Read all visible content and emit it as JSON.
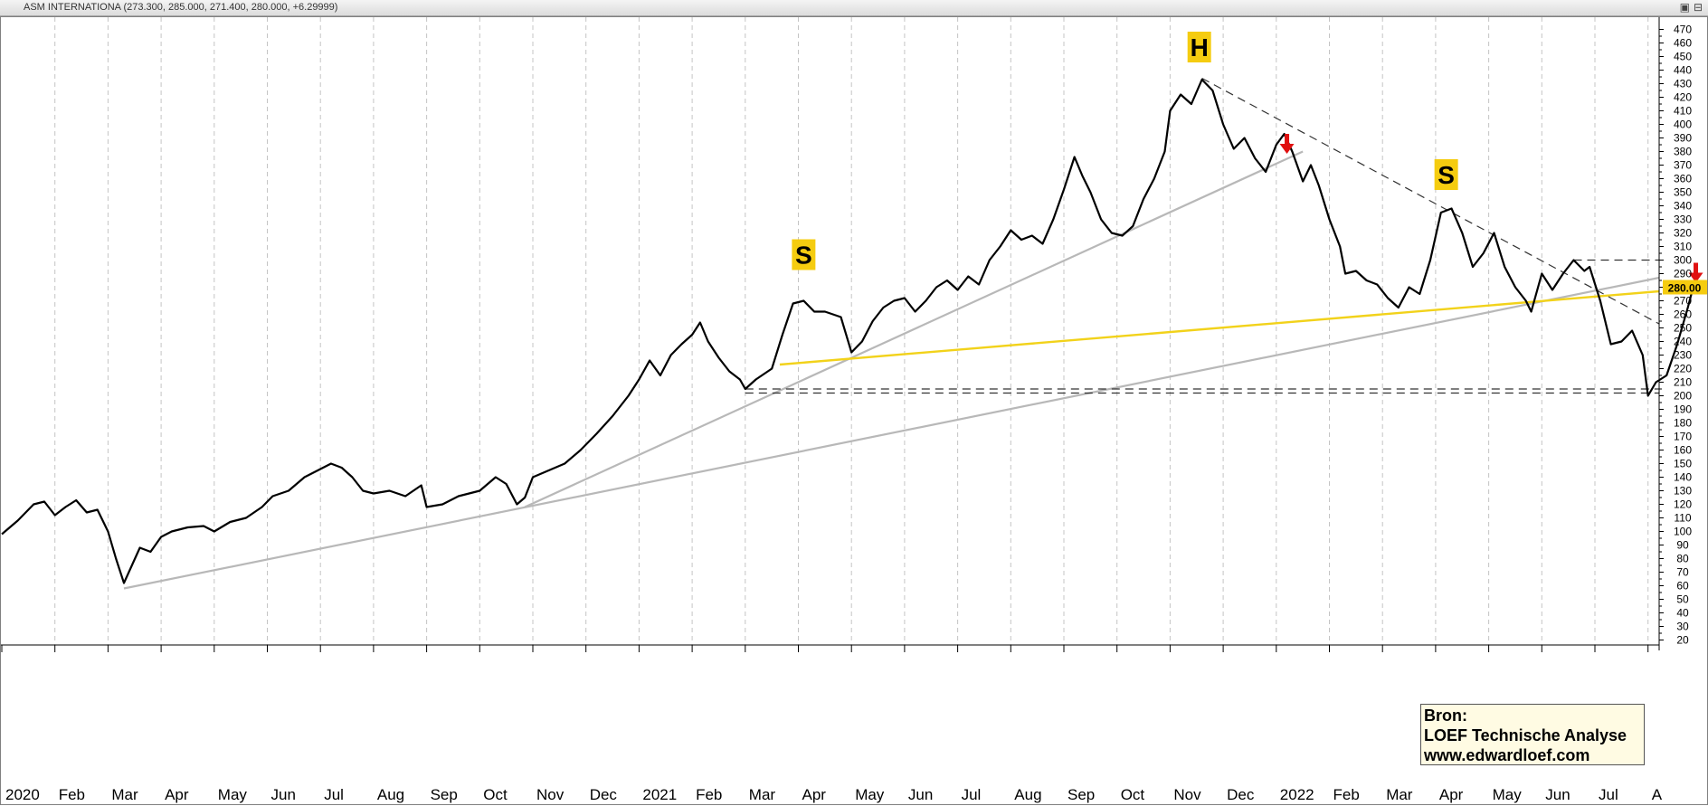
{
  "window": {
    "title": "ASM INTERNATIONA",
    "ohlc_readout": "(273.300, 285.000, 271.400, 280.000, +6.29999)",
    "buttons": [
      "▣",
      "⊟"
    ]
  },
  "source_box": {
    "line1": "Bron:",
    "line2": "LOEF Technische Analyse",
    "line3": "www.edwardloef.com"
  },
  "chart_data": {
    "type": "line",
    "title": "ASM INTERNATIONA",
    "price_label": "280.00",
    "ylim": [
      20,
      475
    ],
    "y_ticks": [
      20,
      30,
      40,
      50,
      60,
      70,
      80,
      90,
      100,
      110,
      120,
      130,
      140,
      150,
      160,
      170,
      180,
      190,
      200,
      210,
      220,
      230,
      240,
      250,
      260,
      270,
      280,
      290,
      300,
      310,
      320,
      330,
      340,
      350,
      360,
      370,
      380,
      390,
      400,
      410,
      420,
      430,
      440,
      450,
      460,
      470
    ],
    "x_range": [
      0,
      31.2
    ],
    "x_unit": "months since Jan 2020",
    "x_ticks": [
      {
        "m": 0,
        "label": "2020"
      },
      {
        "m": 1,
        "label": "Feb"
      },
      {
        "m": 2,
        "label": "Mar"
      },
      {
        "m": 3,
        "label": "Apr"
      },
      {
        "m": 4,
        "label": "May"
      },
      {
        "m": 5,
        "label": "Jun"
      },
      {
        "m": 6,
        "label": "Jul"
      },
      {
        "m": 7,
        "label": "Aug"
      },
      {
        "m": 8,
        "label": "Sep"
      },
      {
        "m": 9,
        "label": "Oct"
      },
      {
        "m": 10,
        "label": "Nov"
      },
      {
        "m": 11,
        "label": "Dec"
      },
      {
        "m": 12,
        "label": "2021"
      },
      {
        "m": 13,
        "label": "Feb"
      },
      {
        "m": 14,
        "label": "Mar"
      },
      {
        "m": 15,
        "label": "Apr"
      },
      {
        "m": 16,
        "label": "May"
      },
      {
        "m": 17,
        "label": "Jun"
      },
      {
        "m": 18,
        "label": "Jul"
      },
      {
        "m": 19,
        "label": "Aug"
      },
      {
        "m": 20,
        "label": "Sep"
      },
      {
        "m": 21,
        "label": "Oct"
      },
      {
        "m": 22,
        "label": "Nov"
      },
      {
        "m": 23,
        "label": "Dec"
      },
      {
        "m": 24,
        "label": "2022"
      },
      {
        "m": 25,
        "label": "Feb"
      },
      {
        "m": 26,
        "label": "Mar"
      },
      {
        "m": 27,
        "label": "Apr"
      },
      {
        "m": 28,
        "label": "May"
      },
      {
        "m": 29,
        "label": "Jun"
      },
      {
        "m": 30,
        "label": "Jul"
      },
      {
        "m": 31,
        "label": "A"
      }
    ],
    "series": [
      {
        "name": "ASM International close",
        "color": "#000000",
        "points": [
          [
            0.0,
            98
          ],
          [
            0.3,
            108
          ],
          [
            0.6,
            120
          ],
          [
            0.8,
            122
          ],
          [
            1.0,
            112
          ],
          [
            1.2,
            118
          ],
          [
            1.4,
            123
          ],
          [
            1.6,
            114
          ],
          [
            1.8,
            116
          ],
          [
            2.0,
            100
          ],
          [
            2.15,
            80
          ],
          [
            2.3,
            62
          ],
          [
            2.45,
            75
          ],
          [
            2.6,
            88
          ],
          [
            2.8,
            85
          ],
          [
            3.0,
            96
          ],
          [
            3.2,
            100
          ],
          [
            3.5,
            103
          ],
          [
            3.8,
            104
          ],
          [
            4.0,
            100
          ],
          [
            4.3,
            107
          ],
          [
            4.6,
            110
          ],
          [
            4.9,
            118
          ],
          [
            5.1,
            126
          ],
          [
            5.4,
            130
          ],
          [
            5.7,
            140
          ],
          [
            6.0,
            146
          ],
          [
            6.2,
            150
          ],
          [
            6.4,
            147
          ],
          [
            6.6,
            140
          ],
          [
            6.8,
            130
          ],
          [
            7.0,
            128
          ],
          [
            7.3,
            130
          ],
          [
            7.6,
            126
          ],
          [
            7.9,
            134
          ],
          [
            8.0,
            118
          ],
          [
            8.3,
            120
          ],
          [
            8.6,
            126
          ],
          [
            9.0,
            130
          ],
          [
            9.3,
            140
          ],
          [
            9.5,
            135
          ],
          [
            9.7,
            120
          ],
          [
            9.85,
            125
          ],
          [
            10.0,
            140
          ],
          [
            10.3,
            145
          ],
          [
            10.6,
            150
          ],
          [
            10.9,
            160
          ],
          [
            11.2,
            172
          ],
          [
            11.5,
            185
          ],
          [
            11.8,
            200
          ],
          [
            12.0,
            212
          ],
          [
            12.2,
            226
          ],
          [
            12.4,
            215
          ],
          [
            12.6,
            230
          ],
          [
            12.8,
            238
          ],
          [
            13.0,
            245
          ],
          [
            13.15,
            254
          ],
          [
            13.3,
            240
          ],
          [
            13.5,
            228
          ],
          [
            13.7,
            218
          ],
          [
            13.9,
            212
          ],
          [
            14.0,
            205
          ],
          [
            14.2,
            212
          ],
          [
            14.5,
            220
          ],
          [
            14.7,
            245
          ],
          [
            14.9,
            268
          ],
          [
            15.1,
            270
          ],
          [
            15.3,
            262
          ],
          [
            15.5,
            262
          ],
          [
            15.8,
            258
          ],
          [
            16.0,
            232
          ],
          [
            16.2,
            240
          ],
          [
            16.4,
            255
          ],
          [
            16.6,
            265
          ],
          [
            16.8,
            270
          ],
          [
            17.0,
            272
          ],
          [
            17.2,
            262
          ],
          [
            17.4,
            270
          ],
          [
            17.6,
            280
          ],
          [
            17.8,
            285
          ],
          [
            18.0,
            278
          ],
          [
            18.2,
            288
          ],
          [
            18.4,
            282
          ],
          [
            18.6,
            300
          ],
          [
            18.8,
            310
          ],
          [
            19.0,
            322
          ],
          [
            19.2,
            315
          ],
          [
            19.4,
            318
          ],
          [
            19.6,
            312
          ],
          [
            19.8,
            330
          ],
          [
            20.0,
            352
          ],
          [
            20.2,
            376
          ],
          [
            20.35,
            362
          ],
          [
            20.5,
            350
          ],
          [
            20.7,
            330
          ],
          [
            20.9,
            320
          ],
          [
            21.1,
            318
          ],
          [
            21.3,
            325
          ],
          [
            21.5,
            345
          ],
          [
            21.7,
            360
          ],
          [
            21.9,
            380
          ],
          [
            22.0,
            410
          ],
          [
            22.2,
            422
          ],
          [
            22.4,
            415
          ],
          [
            22.6,
            433
          ],
          [
            22.8,
            425
          ],
          [
            23.0,
            400
          ],
          [
            23.2,
            382
          ],
          [
            23.4,
            390
          ],
          [
            23.6,
            375
          ],
          [
            23.8,
            365
          ],
          [
            24.0,
            385
          ],
          [
            24.15,
            393
          ],
          [
            24.3,
            380
          ],
          [
            24.5,
            358
          ],
          [
            24.65,
            370
          ],
          [
            24.8,
            355
          ],
          [
            25.0,
            330
          ],
          [
            25.2,
            310
          ],
          [
            25.3,
            290
          ],
          [
            25.5,
            292
          ],
          [
            25.7,
            285
          ],
          [
            25.9,
            282
          ],
          [
            26.1,
            272
          ],
          [
            26.3,
            265
          ],
          [
            26.5,
            280
          ],
          [
            26.7,
            275
          ],
          [
            26.9,
            300
          ],
          [
            27.1,
            335
          ],
          [
            27.3,
            338
          ],
          [
            27.5,
            320
          ],
          [
            27.7,
            295
          ],
          [
            27.9,
            305
          ],
          [
            28.1,
            320
          ],
          [
            28.3,
            295
          ],
          [
            28.5,
            280
          ],
          [
            28.7,
            270
          ],
          [
            28.8,
            262
          ],
          [
            29.0,
            290
          ],
          [
            29.2,
            278
          ],
          [
            29.4,
            290
          ],
          [
            29.6,
            300
          ],
          [
            29.8,
            292
          ],
          [
            29.9,
            295
          ],
          [
            30.1,
            270
          ],
          [
            30.3,
            238
          ],
          [
            30.5,
            240
          ],
          [
            30.7,
            248
          ],
          [
            30.9,
            230
          ],
          [
            31.0,
            200
          ],
          [
            31.15,
            210
          ],
          [
            31.35,
            215
          ],
          [
            31.55,
            238
          ],
          [
            31.75,
            265
          ],
          [
            31.85,
            280
          ]
        ]
      }
    ],
    "overlays": {
      "trendlines": [
        {
          "name": "long-term-support",
          "color": "#b8b8b8",
          "from": [
            2.3,
            58
          ],
          "to": [
            32.5,
            287
          ]
        },
        {
          "name": "mid-term-support",
          "color": "#b8b8b8",
          "from": [
            9.85,
            118
          ],
          "to": [
            24.5,
            380
          ]
        },
        {
          "name": "neckline",
          "color": "#f2d21a",
          "from": [
            14.65,
            223
          ],
          "to": [
            31.8,
            277
          ]
        },
        {
          "name": "head-resistance",
          "color": "#333333",
          "dash": true,
          "from": [
            22.6,
            434
          ],
          "to": [
            32.5,
            253
          ]
        },
        {
          "name": "horizontal-resistance",
          "color": "#333333",
          "dash": true,
          "from": [
            29.6,
            300
          ],
          "to": [
            32.5,
            300
          ]
        },
        {
          "name": "horizontal-support-1",
          "color": "#333333",
          "dash": true,
          "from": [
            14.0,
            205
          ],
          "to": [
            32.5,
            205
          ]
        },
        {
          "name": "horizontal-support-2",
          "color": "#333333",
          "dash": true,
          "from": [
            14.0,
            202
          ],
          "to": [
            32.5,
            202
          ]
        }
      ],
      "pattern_labels": [
        {
          "text": "S",
          "m": 15.1,
          "value": 304
        },
        {
          "text": "H",
          "m": 22.55,
          "value": 457
        },
        {
          "text": "S",
          "m": 27.2,
          "value": 363
        }
      ],
      "arrows": [
        {
          "name": "sell-arrow-1",
          "m": 24.2,
          "value": 385
        },
        {
          "name": "sell-arrow-2",
          "m": 31.9,
          "value": 290
        }
      ]
    }
  }
}
